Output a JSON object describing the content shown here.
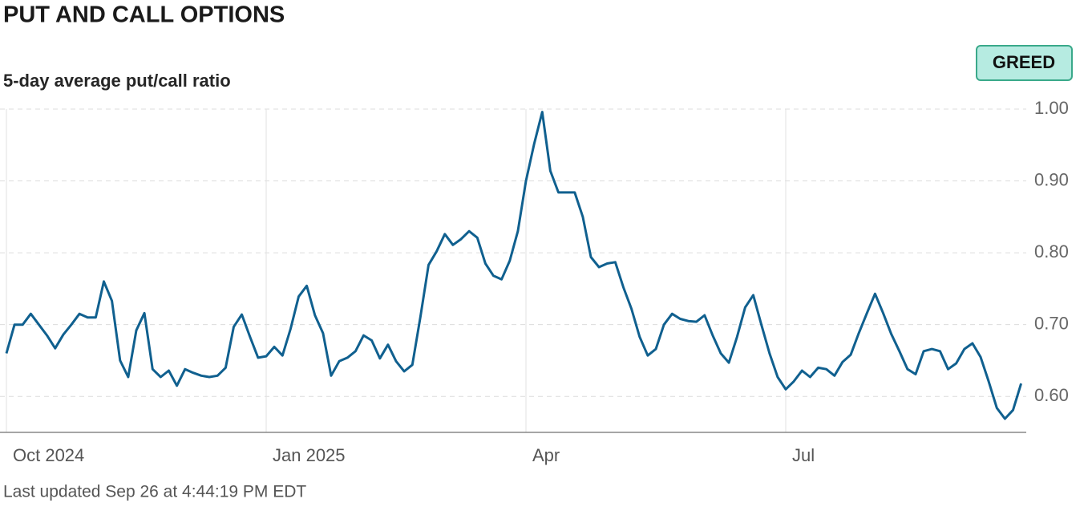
{
  "chart_data": {
    "type": "line",
    "title": "PUT AND CALL OPTIONS",
    "subtitle": "5-day average put/call ratio",
    "badge": "GREED",
    "footnote": "Last updated Sep 26 at 4:44:19 PM EDT",
    "categories": [
      "Oct 2024",
      null,
      null,
      null,
      null,
      null,
      null,
      null,
      null,
      null,
      null,
      null,
      null,
      null,
      null,
      null,
      null,
      null,
      null,
      null,
      null,
      null,
      null,
      null,
      null,
      null,
      null,
      null,
      null,
      null,
      null,
      null,
      "Jan 2025",
      null,
      null,
      null,
      null,
      null,
      null,
      null,
      null,
      null,
      null,
      null,
      null,
      null,
      null,
      null,
      null,
      null,
      null,
      null,
      null,
      null,
      null,
      null,
      null,
      null,
      null,
      null,
      null,
      null,
      null,
      null,
      "Apr",
      null,
      null,
      null,
      null,
      null,
      null,
      null,
      null,
      null,
      null,
      null,
      null,
      null,
      null,
      null,
      null,
      null,
      null,
      null,
      null,
      null,
      null,
      null,
      null,
      null,
      null,
      null,
      null,
      null,
      null,
      null,
      "Jul",
      null,
      null,
      null,
      null,
      null,
      null,
      null,
      null,
      null,
      null,
      null,
      null,
      null,
      null,
      null,
      null,
      null,
      null,
      null,
      null,
      null,
      null,
      null,
      null,
      null,
      null,
      null,
      null,
      null
    ],
    "series": [
      {
        "name": "5-day average put/call ratio",
        "color": "#10608f",
        "values": [
          0.66,
          0.7,
          0.7,
          0.715,
          0.7,
          0.685,
          0.667,
          0.686,
          0.7,
          0.715,
          0.71,
          0.71,
          0.76,
          0.733,
          0.65,
          0.627,
          0.692,
          0.716,
          0.638,
          0.627,
          0.636,
          0.615,
          0.638,
          0.633,
          0.629,
          0.627,
          0.629,
          0.64,
          0.697,
          0.714,
          0.683,
          0.654,
          0.656,
          0.669,
          0.657,
          0.694,
          0.739,
          0.754,
          0.713,
          0.688,
          0.629,
          0.649,
          0.654,
          0.663,
          0.685,
          0.678,
          0.653,
          0.672,
          0.649,
          0.635,
          0.644,
          0.711,
          0.783,
          0.802,
          0.826,
          0.811,
          0.819,
          0.83,
          0.821,
          0.785,
          0.768,
          0.763,
          0.789,
          0.83,
          0.9,
          0.951,
          0.996,
          0.914,
          0.884,
          0.884,
          0.884,
          0.85,
          0.794,
          0.78,
          0.785,
          0.787,
          0.752,
          0.722,
          0.683,
          0.657,
          0.666,
          0.7,
          0.715,
          0.708,
          0.705,
          0.704,
          0.713,
          0.685,
          0.66,
          0.647,
          0.683,
          0.724,
          0.741,
          0.7,
          0.66,
          0.627,
          0.61,
          0.621,
          0.636,
          0.627,
          0.64,
          0.638,
          0.629,
          0.648,
          0.658,
          0.688,
          0.716,
          0.743,
          0.716,
          0.687,
          0.663,
          0.638,
          0.631,
          0.663,
          0.666,
          0.663,
          0.638,
          0.646,
          0.666,
          0.674,
          0.655,
          0.621,
          0.584,
          0.569,
          0.581,
          0.618
        ]
      }
    ],
    "ylim": [
      0.55,
      1.0
    ],
    "yticks": [
      {
        "value": 0.6,
        "label": "0.60"
      },
      {
        "value": 0.7,
        "label": "0.70"
      },
      {
        "value": 0.8,
        "label": "0.80"
      },
      {
        "value": 0.9,
        "label": "0.90"
      },
      {
        "value": 1.0,
        "label": "1.00"
      }
    ],
    "grid": true
  }
}
